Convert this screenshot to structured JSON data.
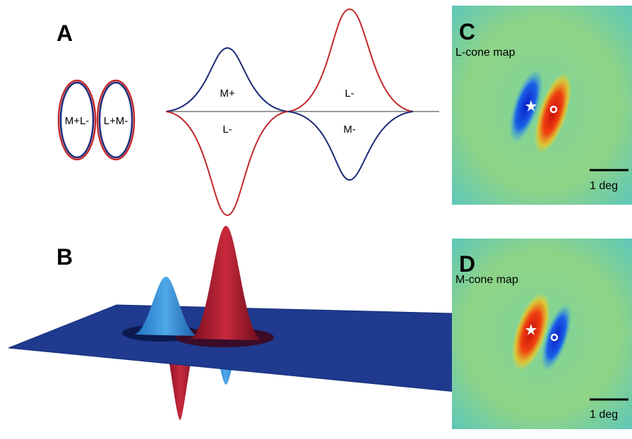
{
  "panels": {
    "a": {
      "label": "A",
      "ellipses": [
        "M+L-",
        "L+M-"
      ],
      "curve_labels": [
        "M+",
        "L-",
        "L-",
        "M-"
      ]
    },
    "b": {
      "label": "B"
    },
    "c": {
      "label": "C",
      "title": "L-cone map",
      "scale": "1 deg"
    },
    "d": {
      "label": "D",
      "title": "M-cone map",
      "scale": "1 deg"
    }
  }
}
